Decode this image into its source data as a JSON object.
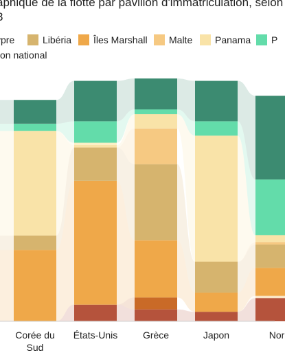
{
  "chart_data": {
    "type": "bar",
    "stacked": true,
    "normalized": true,
    "title_lines": [
      "aphique de la flotte par pavillon d'immatriculation, selon",
      "3"
    ],
    "legend": [
      {
        "name": "ypre",
        "color": "#fbe6c6"
      },
      {
        "name": "Libéria",
        "color": "#d6b46e"
      },
      {
        "name": "Îles Marshall",
        "color": "#efa849"
      },
      {
        "name": "Malte",
        "color": "#f6c982"
      },
      {
        "name": "Panama",
        "color": "#f9e3a8"
      },
      {
        "name": "P",
        "color": "#63dcaa"
      },
      {
        "name": "on national",
        "color": "#ffffff"
      }
    ],
    "categories": [
      "Corée du Sud",
      "États-Unis",
      "Grèce",
      "Japon",
      "Nor"
    ],
    "category_label_lines": [
      [
        "Corée du",
        "Sud"
      ],
      [
        "États-Unis"
      ],
      [
        "Grèce"
      ],
      [
        "Japon"
      ],
      [
        "Nor"
      ]
    ],
    "ylim": [
      0,
      100
    ],
    "series": [
      {
        "key": "red",
        "color": "#b5533c",
        "values": [
          0,
          7,
          5,
          4,
          10
        ]
      },
      {
        "key": "orange-dark",
        "color": "#c96a27",
        "values": [
          0,
          0,
          5,
          0,
          0
        ]
      },
      {
        "key": "cyprus",
        "color": "#fbe6c6",
        "values": [
          0,
          0,
          0,
          0,
          1
        ]
      },
      {
        "key": "marshall",
        "color": "#efa849",
        "values": [
          30,
          52,
          24,
          8,
          12
        ]
      },
      {
        "key": "liberia",
        "color": "#d6b46e",
        "values": [
          6,
          14,
          32,
          13,
          10
        ]
      },
      {
        "key": "malta",
        "color": "#f6c982",
        "values": [
          0,
          0,
          15,
          0,
          1
        ]
      },
      {
        "key": "panama",
        "color": "#f9e3a8",
        "values": [
          44,
          1,
          6,
          53,
          3
        ]
      },
      {
        "key": "cream",
        "color": "#fbefc6",
        "values": [
          0,
          1,
          0,
          0,
          0
        ]
      },
      {
        "key": "other-green",
        "color": "#63dcaa",
        "values": [
          3,
          9,
          2,
          6,
          24
        ]
      },
      {
        "key": "national",
        "color": "#3c8b71",
        "values": [
          10,
          17,
          13,
          17,
          36
        ]
      }
    ]
  }
}
